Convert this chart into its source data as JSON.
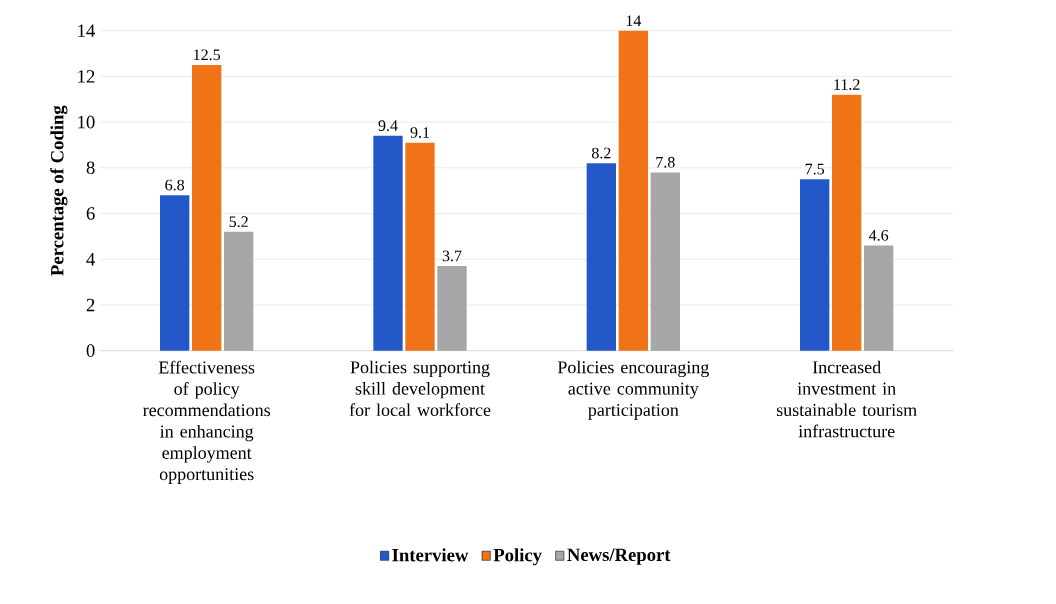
{
  "chart_data": {
    "type": "bar",
    "ylabel": "Percentage of Coding",
    "categories": [
      "Effectiveness of policy recommendations in enhancing employment opportunities",
      "Policies supporting skill development for local workforce",
      "Policies encouraging active community participation",
      "Increased investment in sustainable tourism infrastructure"
    ],
    "series": [
      {
        "name": "Interview",
        "color": "#2458c8",
        "values": [
          6.8,
          9.4,
          8.2,
          7.5
        ]
      },
      {
        "name": "Policy",
        "color": "#f07318",
        "values": [
          12.5,
          9.1,
          14,
          11.2
        ]
      },
      {
        "name": "News/Report",
        "color": "#a6a6a6",
        "values": [
          5.2,
          3.7,
          7.8,
          4.6
        ]
      }
    ],
    "ylim": [
      0,
      14
    ],
    "yticks": [
      0,
      2,
      4,
      6,
      8,
      10,
      12,
      14
    ],
    "grid": "y",
    "legend": "bottom",
    "data_labels": true
  }
}
